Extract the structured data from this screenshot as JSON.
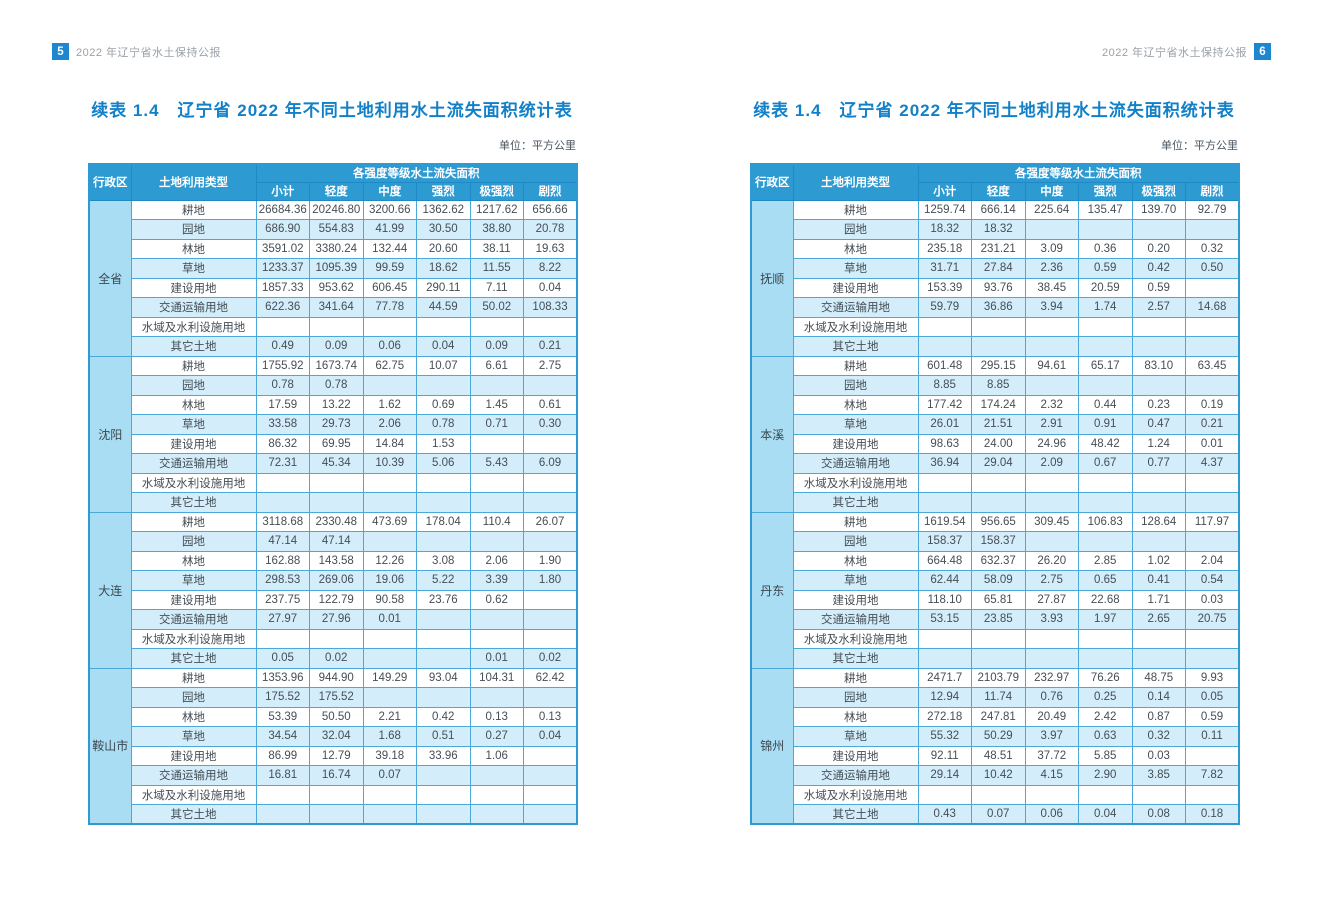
{
  "theme": {
    "header_blue": "#2d9ad2",
    "header_line": "#1d8ac6",
    "border_blue": "#4aa9da",
    "region_bg": "#a9ddf3",
    "stripe_bg": "#d3edfa",
    "title_blue": "#1280c8",
    "badge_blue": "#1c87d0"
  },
  "table_header": {
    "region": "行政区",
    "land_type": "土地利用类型",
    "span_title": "各强度等级水土流失面积",
    "columns": [
      "小计",
      "轻度",
      "中度",
      "强烈",
      "极强烈",
      "剧烈"
    ]
  },
  "pages": [
    {
      "page_number": "5",
      "running_title": "2022 年辽宁省水土保持公报",
      "table_title": "续表 1.4　辽宁省 2022 年不同土地利用水土流失面积统计表",
      "unit_label": "单位：平方公里",
      "regions": [
        {
          "name": "全省",
          "rows": [
            {
              "land": "耕地",
              "values": [
                "26684.36",
                "20246.80",
                "3200.66",
                "1362.62",
                "1217.62",
                "656.66"
              ]
            },
            {
              "land": "园地",
              "values": [
                "686.90",
                "554.83",
                "41.99",
                "30.50",
                "38.80",
                "20.78"
              ]
            },
            {
              "land": "林地",
              "values": [
                "3591.02",
                "3380.24",
                "132.44",
                "20.60",
                "38.11",
                "19.63"
              ]
            },
            {
              "land": "草地",
              "values": [
                "1233.37",
                "1095.39",
                "99.59",
                "18.62",
                "11.55",
                "8.22"
              ]
            },
            {
              "land": "建设用地",
              "values": [
                "1857.33",
                "953.62",
                "606.45",
                "290.11",
                "7.11",
                "0.04"
              ]
            },
            {
              "land": "交通运输用地",
              "values": [
                "622.36",
                "341.64",
                "77.78",
                "44.59",
                "50.02",
                "108.33"
              ]
            },
            {
              "land": "水域及水利设施用地",
              "values": [
                "",
                "",
                "",
                "",
                "",
                ""
              ]
            },
            {
              "land": "其它土地",
              "values": [
                "0.49",
                "0.09",
                "0.06",
                "0.04",
                "0.09",
                "0.21"
              ]
            }
          ]
        },
        {
          "name": "沈阳",
          "rows": [
            {
              "land": "耕地",
              "values": [
                "1755.92",
                "1673.74",
                "62.75",
                "10.07",
                "6.61",
                "2.75"
              ]
            },
            {
              "land": "园地",
              "values": [
                "0.78",
                "0.78",
                "",
                "",
                "",
                ""
              ]
            },
            {
              "land": "林地",
              "values": [
                "17.59",
                "13.22",
                "1.62",
                "0.69",
                "1.45",
                "0.61"
              ]
            },
            {
              "land": "草地",
              "values": [
                "33.58",
                "29.73",
                "2.06",
                "0.78",
                "0.71",
                "0.30"
              ]
            },
            {
              "land": "建设用地",
              "values": [
                "86.32",
                "69.95",
                "14.84",
                "1.53",
                "",
                ""
              ]
            },
            {
              "land": "交通运输用地",
              "values": [
                "72.31",
                "45.34",
                "10.39",
                "5.06",
                "5.43",
                "6.09"
              ]
            },
            {
              "land": "水域及水利设施用地",
              "values": [
                "",
                "",
                "",
                "",
                "",
                ""
              ]
            },
            {
              "land": "其它土地",
              "values": [
                "",
                "",
                "",
                "",
                "",
                ""
              ]
            }
          ]
        },
        {
          "name": "大连",
          "rows": [
            {
              "land": "耕地",
              "values": [
                "3118.68",
                "2330.48",
                "473.69",
                "178.04",
                "110.4",
                "26.07"
              ]
            },
            {
              "land": "园地",
              "values": [
                "47.14",
                "47.14",
                "",
                "",
                "",
                ""
              ]
            },
            {
              "land": "林地",
              "values": [
                "162.88",
                "143.58",
                "12.26",
                "3.08",
                "2.06",
                "1.90"
              ]
            },
            {
              "land": "草地",
              "values": [
                "298.53",
                "269.06",
                "19.06",
                "5.22",
                "3.39",
                "1.80"
              ]
            },
            {
              "land": "建设用地",
              "values": [
                "237.75",
                "122.79",
                "90.58",
                "23.76",
                "0.62",
                ""
              ]
            },
            {
              "land": "交通运输用地",
              "values": [
                "27.97",
                "27.96",
                "0.01",
                "",
                "",
                ""
              ]
            },
            {
              "land": "水域及水利设施用地",
              "values": [
                "",
                "",
                "",
                "",
                "",
                ""
              ]
            },
            {
              "land": "其它土地",
              "values": [
                "0.05",
                "0.02",
                "",
                "",
                "0.01",
                "0.02"
              ]
            }
          ]
        },
        {
          "name": "鞍山市",
          "rows": [
            {
              "land": "耕地",
              "values": [
                "1353.96",
                "944.90",
                "149.29",
                "93.04",
                "104.31",
                "62.42"
              ]
            },
            {
              "land": "园地",
              "values": [
                "175.52",
                "175.52",
                "",
                "",
                "",
                ""
              ]
            },
            {
              "land": "林地",
              "values": [
                "53.39",
                "50.50",
                "2.21",
                "0.42",
                "0.13",
                "0.13"
              ]
            },
            {
              "land": "草地",
              "values": [
                "34.54",
                "32.04",
                "1.68",
                "0.51",
                "0.27",
                "0.04"
              ]
            },
            {
              "land": "建设用地",
              "values": [
                "86.99",
                "12.79",
                "39.18",
                "33.96",
                "1.06",
                ""
              ]
            },
            {
              "land": "交通运输用地",
              "values": [
                "16.81",
                "16.74",
                "0.07",
                "",
                "",
                ""
              ]
            },
            {
              "land": "水域及水利设施用地",
              "values": [
                "",
                "",
                "",
                "",
                "",
                ""
              ]
            },
            {
              "land": "其它土地",
              "values": [
                "",
                "",
                "",
                "",
                "",
                ""
              ]
            }
          ]
        }
      ]
    },
    {
      "page_number": "6",
      "running_title": "2022 年辽宁省水土保持公报",
      "table_title": "续表 1.4　辽宁省 2022 年不同土地利用水土流失面积统计表",
      "unit_label": "单位：平方公里",
      "regions": [
        {
          "name": "抚顺",
          "rows": [
            {
              "land": "耕地",
              "values": [
                "1259.74",
                "666.14",
                "225.64",
                "135.47",
                "139.70",
                "92.79"
              ]
            },
            {
              "land": "园地",
              "values": [
                "18.32",
                "18.32",
                "",
                "",
                "",
                ""
              ]
            },
            {
              "land": "林地",
              "values": [
                "235.18",
                "231.21",
                "3.09",
                "0.36",
                "0.20",
                "0.32"
              ]
            },
            {
              "land": "草地",
              "values": [
                "31.71",
                "27.84",
                "2.36",
                "0.59",
                "0.42",
                "0.50"
              ]
            },
            {
              "land": "建设用地",
              "values": [
                "153.39",
                "93.76",
                "38.45",
                "20.59",
                "0.59",
                ""
              ]
            },
            {
              "land": "交通运输用地",
              "values": [
                "59.79",
                "36.86",
                "3.94",
                "1.74",
                "2.57",
                "14.68"
              ]
            },
            {
              "land": "水域及水利设施用地",
              "values": [
                "",
                "",
                "",
                "",
                "",
                ""
              ]
            },
            {
              "land": "其它土地",
              "values": [
                "",
                "",
                "",
                "",
                "",
                ""
              ]
            }
          ]
        },
        {
          "name": "本溪",
          "rows": [
            {
              "land": "耕地",
              "values": [
                "601.48",
                "295.15",
                "94.61",
                "65.17",
                "83.10",
                "63.45"
              ]
            },
            {
              "land": "园地",
              "values": [
                "8.85",
                "8.85",
                "",
                "",
                "",
                ""
              ]
            },
            {
              "land": "林地",
              "values": [
                "177.42",
                "174.24",
                "2.32",
                "0.44",
                "0.23",
                "0.19"
              ]
            },
            {
              "land": "草地",
              "values": [
                "26.01",
                "21.51",
                "2.91",
                "0.91",
                "0.47",
                "0.21"
              ]
            },
            {
              "land": "建设用地",
              "values": [
                "98.63",
                "24.00",
                "24.96",
                "48.42",
                "1.24",
                "0.01"
              ]
            },
            {
              "land": "交通运输用地",
              "values": [
                "36.94",
                "29.04",
                "2.09",
                "0.67",
                "0.77",
                "4.37"
              ]
            },
            {
              "land": "水域及水利设施用地",
              "values": [
                "",
                "",
                "",
                "",
                "",
                ""
              ]
            },
            {
              "land": "其它土地",
              "values": [
                "",
                "",
                "",
                "",
                "",
                ""
              ]
            }
          ]
        },
        {
          "name": "丹东",
          "rows": [
            {
              "land": "耕地",
              "values": [
                "1619.54",
                "956.65",
                "309.45",
                "106.83",
                "128.64",
                "117.97"
              ]
            },
            {
              "land": "园地",
              "values": [
                "158.37",
                "158.37",
                "",
                "",
                "",
                ""
              ]
            },
            {
              "land": "林地",
              "values": [
                "664.48",
                "632.37",
                "26.20",
                "2.85",
                "1.02",
                "2.04"
              ]
            },
            {
              "land": "草地",
              "values": [
                "62.44",
                "58.09",
                "2.75",
                "0.65",
                "0.41",
                "0.54"
              ]
            },
            {
              "land": "建设用地",
              "values": [
                "118.10",
                "65.81",
                "27.87",
                "22.68",
                "1.71",
                "0.03"
              ]
            },
            {
              "land": "交通运输用地",
              "values": [
                "53.15",
                "23.85",
                "3.93",
                "1.97",
                "2.65",
                "20.75"
              ]
            },
            {
              "land": "水域及水利设施用地",
              "values": [
                "",
                "",
                "",
                "",
                "",
                ""
              ]
            },
            {
              "land": "其它土地",
              "values": [
                "",
                "",
                "",
                "",
                "",
                ""
              ]
            }
          ]
        },
        {
          "name": "锦州",
          "rows": [
            {
              "land": "耕地",
              "values": [
                "2471.7",
                "2103.79",
                "232.97",
                "76.26",
                "48.75",
                "9.93"
              ]
            },
            {
              "land": "园地",
              "values": [
                "12.94",
                "11.74",
                "0.76",
                "0.25",
                "0.14",
                "0.05"
              ]
            },
            {
              "land": "林地",
              "values": [
                "272.18",
                "247.81",
                "20.49",
                "2.42",
                "0.87",
                "0.59"
              ]
            },
            {
              "land": "草地",
              "values": [
                "55.32",
                "50.29",
                "3.97",
                "0.63",
                "0.32",
                "0.11"
              ]
            },
            {
              "land": "建设用地",
              "values": [
                "92.11",
                "48.51",
                "37.72",
                "5.85",
                "0.03",
                ""
              ]
            },
            {
              "land": "交通运输用地",
              "values": [
                "29.14",
                "10.42",
                "4.15",
                "2.90",
                "3.85",
                "7.82"
              ]
            },
            {
              "land": "水域及水利设施用地",
              "values": [
                "",
                "",
                "",
                "",
                "",
                ""
              ]
            },
            {
              "land": "其它土地",
              "values": [
                "0.43",
                "0.07",
                "0.06",
                "0.04",
                "0.08",
                "0.18"
              ]
            }
          ]
        }
      ]
    }
  ]
}
